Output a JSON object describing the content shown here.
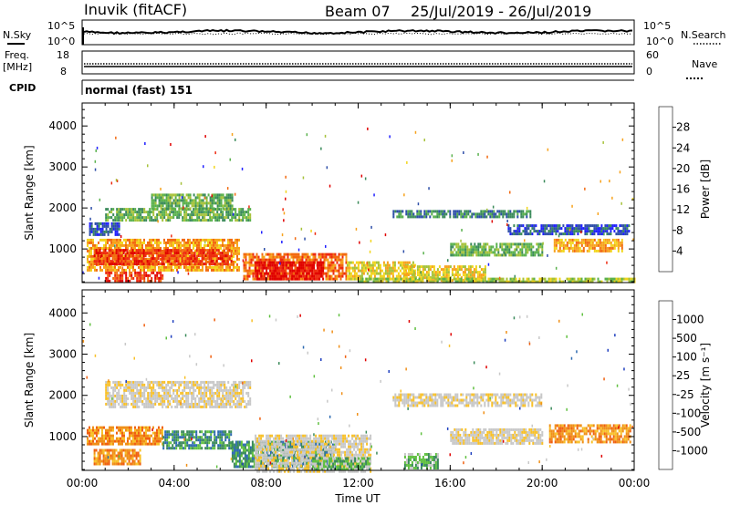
{
  "header": {
    "station": "Inuvik (fitACF)",
    "beam": "Beam 07",
    "date_range": "25/Jul/2019 - 26/Jul/2019"
  },
  "status": {
    "nsky_label": "N.Sky",
    "nsky_top": "10^5",
    "nsky_bottom": "10^0",
    "nsearch_label": "N.Search",
    "nsearch_top": "10^5",
    "nsearch_bottom": "10^0",
    "freq_label": "Freq.",
    "freq_unit": "[MHz]",
    "freq_top": "18",
    "freq_bottom": "8",
    "nave_label": "Nave",
    "nave_top": "60",
    "nave_bottom": "0",
    "cpid_label": "CPID",
    "cpid_text": "normal (fast) 151"
  },
  "chart_data": [
    {
      "type": "heatmap",
      "panel": "power",
      "ylabel": "Slant Range [km]",
      "xlabel": "",
      "x_ticks": [
        "00:00",
        "04:00",
        "08:00",
        "12:00",
        "16:00",
        "20:00",
        "00:00"
      ],
      "y_ticks": [
        1000,
        2000,
        3000,
        4000
      ],
      "ylim": [
        180,
        4560
      ],
      "xlim_hours": [
        0,
        24
      ],
      "colorbar_label": "Power [dB]",
      "colorbar_ticks": [
        4,
        8,
        12,
        16,
        20,
        24,
        28
      ],
      "colorbar_colors": [
        "#1f1fff",
        "#2d4ea8",
        "#3a8a5a",
        "#59b14c",
        "#a6c23a",
        "#f2d51c",
        "#f7a21b",
        "#f26a10",
        "#ee2a10",
        "#e00000"
      ],
      "regions": [
        {
          "t0": 0.3,
          "t1": 1.6,
          "r0": 1350,
          "r1": 1650,
          "level": 1
        },
        {
          "t0": 1.0,
          "t1": 7.3,
          "r0": 1700,
          "r1": 2000,
          "level": 3
        },
        {
          "t0": 3.0,
          "t1": 6.5,
          "r0": 2000,
          "r1": 2350,
          "level": 3
        },
        {
          "t0": 0.2,
          "t1": 6.8,
          "r0": 500,
          "r1": 1250,
          "level": 6
        },
        {
          "t0": 0.5,
          "t1": 6.5,
          "r0": 650,
          "r1": 1000,
          "level": 8
        },
        {
          "t0": 1.0,
          "t1": 3.5,
          "r0": 200,
          "r1": 450,
          "level": 8
        },
        {
          "t0": 7.0,
          "t1": 11.5,
          "r0": 250,
          "r1": 900,
          "level": 7
        },
        {
          "t0": 7.5,
          "t1": 10.5,
          "r0": 250,
          "r1": 700,
          "level": 9
        },
        {
          "t0": 11.5,
          "t1": 14.5,
          "r0": 250,
          "r1": 700,
          "level": 5
        },
        {
          "t0": 14.0,
          "t1": 17.5,
          "r0": 250,
          "r1": 600,
          "level": 5
        },
        {
          "t0": 13.5,
          "t1": 19.5,
          "r0": 1750,
          "r1": 1950,
          "level": 2
        },
        {
          "t0": 16.0,
          "t1": 20.0,
          "r0": 850,
          "r1": 1150,
          "level": 3
        },
        {
          "t0": 20.5,
          "t1": 23.5,
          "r0": 950,
          "r1": 1250,
          "level": 6
        },
        {
          "t0": 18.5,
          "t1": 23.8,
          "r0": 1350,
          "r1": 1600,
          "level": 1
        },
        {
          "t0": 12.0,
          "t1": 24.0,
          "r0": 180,
          "r1": 300,
          "level": 4
        }
      ]
    },
    {
      "type": "heatmap",
      "panel": "velocity",
      "ylabel": "Slant Range [km]",
      "xlabel": "Time UT",
      "x_ticks": [
        "00:00",
        "04:00",
        "08:00",
        "12:00",
        "16:00",
        "20:00",
        "00:00"
      ],
      "y_ticks": [
        1000,
        2000,
        3000,
        4000
      ],
      "ylim": [
        180,
        4560
      ],
      "xlim_hours": [
        0,
        24
      ],
      "colorbar_label": "Velocity [m s⁻¹]",
      "colorbar_ticks": [
        "-1000",
        "-500",
        "-100",
        "-25",
        "25",
        "100",
        "500",
        "1000"
      ],
      "colorbar_colors": [
        "#e00000",
        "#f06010",
        "#f09018",
        "#f8c028",
        "#c8c8c8",
        "#c8c8c8",
        "#60c040",
        "#3a8a5a",
        "#2d6ab0",
        "#1f3fbf"
      ],
      "regions": [
        {
          "t0": 1.0,
          "t1": 7.3,
          "r0": 1700,
          "r1": 2350,
          "level": 4
        },
        {
          "t0": 0.2,
          "t1": 3.5,
          "r0": 850,
          "r1": 1250,
          "level": 2
        },
        {
          "t0": 3.5,
          "t1": 6.5,
          "r0": 700,
          "r1": 1150,
          "level": 7
        },
        {
          "t0": 0.5,
          "t1": 2.5,
          "r0": 350,
          "r1": 700,
          "level": 2
        },
        {
          "t0": 6.5,
          "t1": 11.0,
          "r0": 300,
          "r1": 900,
          "level": 7
        },
        {
          "t0": 7.5,
          "t1": 12.5,
          "r0": 180,
          "r1": 1050,
          "level": 4
        },
        {
          "t0": 10.0,
          "t1": 12.5,
          "r0": 180,
          "r1": 500,
          "level": 6
        },
        {
          "t0": 13.5,
          "t1": 20.0,
          "r0": 1750,
          "r1": 2050,
          "level": 4
        },
        {
          "t0": 16.0,
          "t1": 20.0,
          "r0": 850,
          "r1": 1200,
          "level": 4
        },
        {
          "t0": 20.3,
          "t1": 23.8,
          "r0": 900,
          "r1": 1300,
          "level": 2
        },
        {
          "t0": 14.0,
          "t1": 15.5,
          "r0": 250,
          "r1": 600,
          "level": 6
        }
      ]
    }
  ]
}
